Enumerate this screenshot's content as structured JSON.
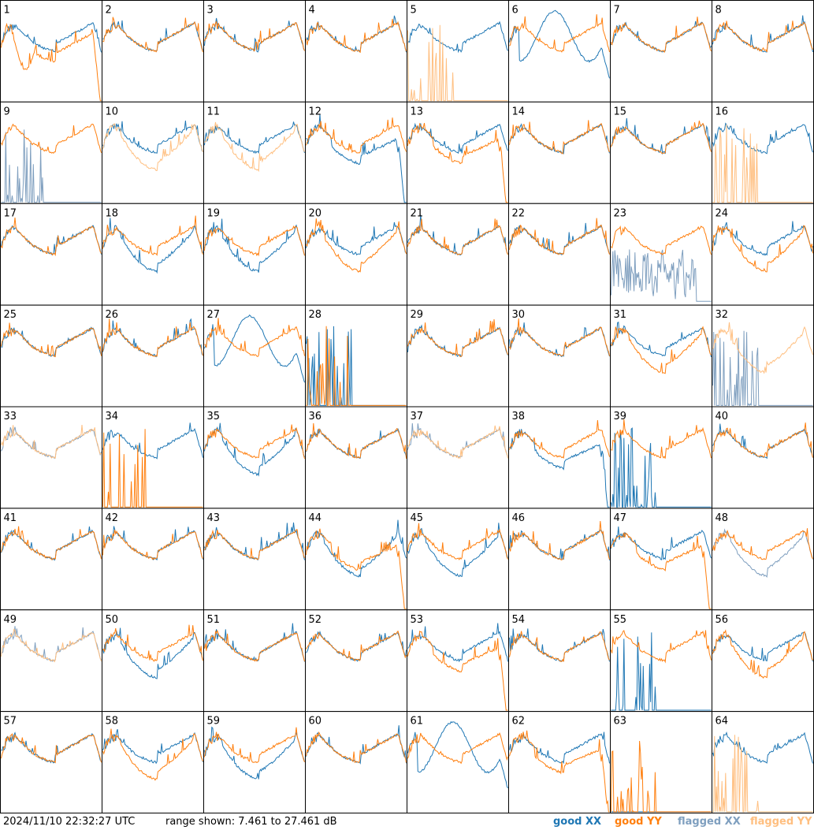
{
  "footer": {
    "timestamp": "2024/11/10 22:32:27 UTC",
    "range_text": "range shown: 7.461 to 27.461 dB"
  },
  "legend": [
    {
      "label": "good XX",
      "color": "#1f77b4"
    },
    {
      "label": "good YY",
      "color": "#ff7f0e"
    },
    {
      "label": "flagged XX",
      "color": "#7f9fbf"
    },
    {
      "label": "flagged YY",
      "color": "#ffbf80"
    }
  ],
  "chart_data": {
    "type": "line",
    "layout": "small-multiples",
    "rows": 8,
    "cols": 8,
    "ylim": [
      7.461,
      27.461
    ],
    "yunit": "dB",
    "panels": [
      {
        "label": "1",
        "xx": "good",
        "yy": "good",
        "xx_style": "normal",
        "yy_style": "dip"
      },
      {
        "label": "2",
        "xx": "good",
        "yy": "good",
        "xx_style": "normal",
        "yy_style": "normal"
      },
      {
        "label": "3",
        "xx": "good",
        "yy": "good",
        "xx_style": "normal",
        "yy_style": "normal"
      },
      {
        "label": "4",
        "xx": "good",
        "yy": "good",
        "xx_style": "normal",
        "yy_style": "normal"
      },
      {
        "label": "5",
        "xx": "good",
        "yy": "flagged",
        "xx_style": "normal",
        "yy_style": "spikes"
      },
      {
        "label": "6",
        "xx": "good",
        "yy": "good",
        "xx_style": "bump",
        "yy_style": "normal"
      },
      {
        "label": "7",
        "xx": "good",
        "yy": "good",
        "xx_style": "normal",
        "yy_style": "normal"
      },
      {
        "label": "8",
        "xx": "good",
        "yy": "good",
        "xx_style": "normal",
        "yy_style": "normal"
      },
      {
        "label": "9",
        "xx": "flagged",
        "yy": "good",
        "xx_style": "spikes",
        "yy_style": "normal"
      },
      {
        "label": "10",
        "xx": "good",
        "yy": "flagged",
        "xx_style": "normal",
        "yy_style": "lowmid"
      },
      {
        "label": "11",
        "xx": "good",
        "yy": "flagged",
        "xx_style": "normal",
        "yy_style": "lowmid"
      },
      {
        "label": "12",
        "xx": "good",
        "yy": "good",
        "xx_style": "drop",
        "yy_style": "normal"
      },
      {
        "label": "13",
        "xx": "good",
        "yy": "good",
        "xx_style": "normal",
        "yy_style": "drop"
      },
      {
        "label": "14",
        "xx": "good",
        "yy": "good",
        "xx_style": "normal",
        "yy_style": "normal"
      },
      {
        "label": "15",
        "xx": "good",
        "yy": "good",
        "xx_style": "normal",
        "yy_style": "normal"
      },
      {
        "label": "16",
        "xx": "good",
        "yy": "flagged",
        "xx_style": "normal",
        "yy_style": "spikes"
      },
      {
        "label": "17",
        "xx": "good",
        "yy": "good",
        "xx_style": "normal",
        "yy_style": "normal"
      },
      {
        "label": "18",
        "xx": "good",
        "yy": "good",
        "xx_style": "lowmid",
        "yy_style": "normal"
      },
      {
        "label": "19",
        "xx": "good",
        "yy": "good",
        "xx_style": "lowmid",
        "yy_style": "normal"
      },
      {
        "label": "20",
        "xx": "good",
        "yy": "good",
        "xx_style": "normal",
        "yy_style": "lowmid"
      },
      {
        "label": "21",
        "xx": "good",
        "yy": "good",
        "xx_style": "normal",
        "yy_style": "normal"
      },
      {
        "label": "22",
        "xx": "good",
        "yy": "good",
        "xx_style": "normal",
        "yy_style": "normal"
      },
      {
        "label": "23",
        "xx": "flagged",
        "yy": "good",
        "xx_style": "noise",
        "yy_style": "normal"
      },
      {
        "label": "24",
        "xx": "good",
        "yy": "good",
        "xx_style": "normal",
        "yy_style": "lowmid"
      },
      {
        "label": "25",
        "xx": "good",
        "yy": "good",
        "xx_style": "normal",
        "yy_style": "normal"
      },
      {
        "label": "26",
        "xx": "good",
        "yy": "good",
        "xx_style": "normal",
        "yy_style": "normal"
      },
      {
        "label": "27",
        "xx": "good",
        "yy": "good",
        "xx_style": "bump",
        "yy_style": "normal"
      },
      {
        "label": "28",
        "xx": "good",
        "yy": "good",
        "xx_style": "spikes",
        "yy_style": "spikes"
      },
      {
        "label": "29",
        "xx": "good",
        "yy": "good",
        "xx_style": "normal",
        "yy_style": "normal"
      },
      {
        "label": "30",
        "xx": "good",
        "yy": "good",
        "xx_style": "normal",
        "yy_style": "normal"
      },
      {
        "label": "31",
        "xx": "good",
        "yy": "good",
        "xx_style": "normal",
        "yy_style": "lowmid"
      },
      {
        "label": "32",
        "xx": "flagged",
        "yy": "flagged",
        "xx_style": "spikes",
        "yy_style": "lowmid"
      },
      {
        "label": "33",
        "xx": "flagged",
        "yy": "flagged",
        "xx_style": "normal",
        "yy_style": "normal"
      },
      {
        "label": "34",
        "xx": "good",
        "yy": "good",
        "xx_style": "normal",
        "yy_style": "spikes"
      },
      {
        "label": "35",
        "xx": "good",
        "yy": "good",
        "xx_style": "lowmid",
        "yy_style": "normal"
      },
      {
        "label": "36",
        "xx": "good",
        "yy": "good",
        "xx_style": "normal",
        "yy_style": "normal"
      },
      {
        "label": "37",
        "xx": "flagged",
        "yy": "flagged",
        "xx_style": "normal",
        "yy_style": "normal"
      },
      {
        "label": "38",
        "xx": "good",
        "yy": "good",
        "xx_style": "drop",
        "yy_style": "normal"
      },
      {
        "label": "39",
        "xx": "good",
        "yy": "good",
        "xx_style": "spikes",
        "yy_style": "normal"
      },
      {
        "label": "40",
        "xx": "good",
        "yy": "good",
        "xx_style": "normal",
        "yy_style": "normal"
      },
      {
        "label": "41",
        "xx": "good",
        "yy": "good",
        "xx_style": "normal",
        "yy_style": "normal"
      },
      {
        "label": "42",
        "xx": "good",
        "yy": "good",
        "xx_style": "normal",
        "yy_style": "normal"
      },
      {
        "label": "43",
        "xx": "good",
        "yy": "good",
        "xx_style": "normal",
        "yy_style": "normal"
      },
      {
        "label": "44",
        "xx": "good",
        "yy": "good",
        "xx_style": "lowmid",
        "yy_style": "drop"
      },
      {
        "label": "45",
        "xx": "good",
        "yy": "good",
        "xx_style": "lowmid",
        "yy_style": "normal"
      },
      {
        "label": "46",
        "xx": "good",
        "yy": "good",
        "xx_style": "normal",
        "yy_style": "normal"
      },
      {
        "label": "47",
        "xx": "good",
        "yy": "good",
        "xx_style": "normal",
        "yy_style": "drop"
      },
      {
        "label": "48",
        "xx": "flagged",
        "yy": "good",
        "xx_style": "lowmid",
        "yy_style": "normal"
      },
      {
        "label": "49",
        "xx": "flagged",
        "yy": "flagged",
        "xx_style": "normal",
        "yy_style": "normal"
      },
      {
        "label": "50",
        "xx": "good",
        "yy": "good",
        "xx_style": "lowmid",
        "yy_style": "normal"
      },
      {
        "label": "51",
        "xx": "good",
        "yy": "good",
        "xx_style": "normal",
        "yy_style": "normal"
      },
      {
        "label": "52",
        "xx": "good",
        "yy": "good",
        "xx_style": "normal",
        "yy_style": "normal"
      },
      {
        "label": "53",
        "xx": "good",
        "yy": "good",
        "xx_style": "normal",
        "yy_style": "drop"
      },
      {
        "label": "54",
        "xx": "good",
        "yy": "good",
        "xx_style": "normal",
        "yy_style": "normal"
      },
      {
        "label": "55",
        "xx": "good",
        "yy": "good",
        "xx_style": "spikes",
        "yy_style": "normal"
      },
      {
        "label": "56",
        "xx": "good",
        "yy": "good",
        "xx_style": "normal",
        "yy_style": "lowmid"
      },
      {
        "label": "57",
        "xx": "good",
        "yy": "good",
        "xx_style": "normal",
        "yy_style": "normal"
      },
      {
        "label": "58",
        "xx": "good",
        "yy": "good",
        "xx_style": "normal",
        "yy_style": "lowmid"
      },
      {
        "label": "59",
        "xx": "good",
        "yy": "good",
        "xx_style": "lowmid",
        "yy_style": "normal"
      },
      {
        "label": "60",
        "xx": "good",
        "yy": "good",
        "xx_style": "normal",
        "yy_style": "normal"
      },
      {
        "label": "61",
        "xx": "good",
        "yy": "good",
        "xx_style": "bump",
        "yy_style": "normal"
      },
      {
        "label": "62",
        "xx": "good",
        "yy": "good",
        "xx_style": "normal",
        "yy_style": "drop"
      },
      {
        "label": "63",
        "xx": "good",
        "yy": "good",
        "xx_style": "flat",
        "yy_style": "spikes"
      },
      {
        "label": "64",
        "xx": "good",
        "yy": "flagged",
        "xx_style": "normal",
        "yy_style": "spikes"
      }
    ]
  }
}
